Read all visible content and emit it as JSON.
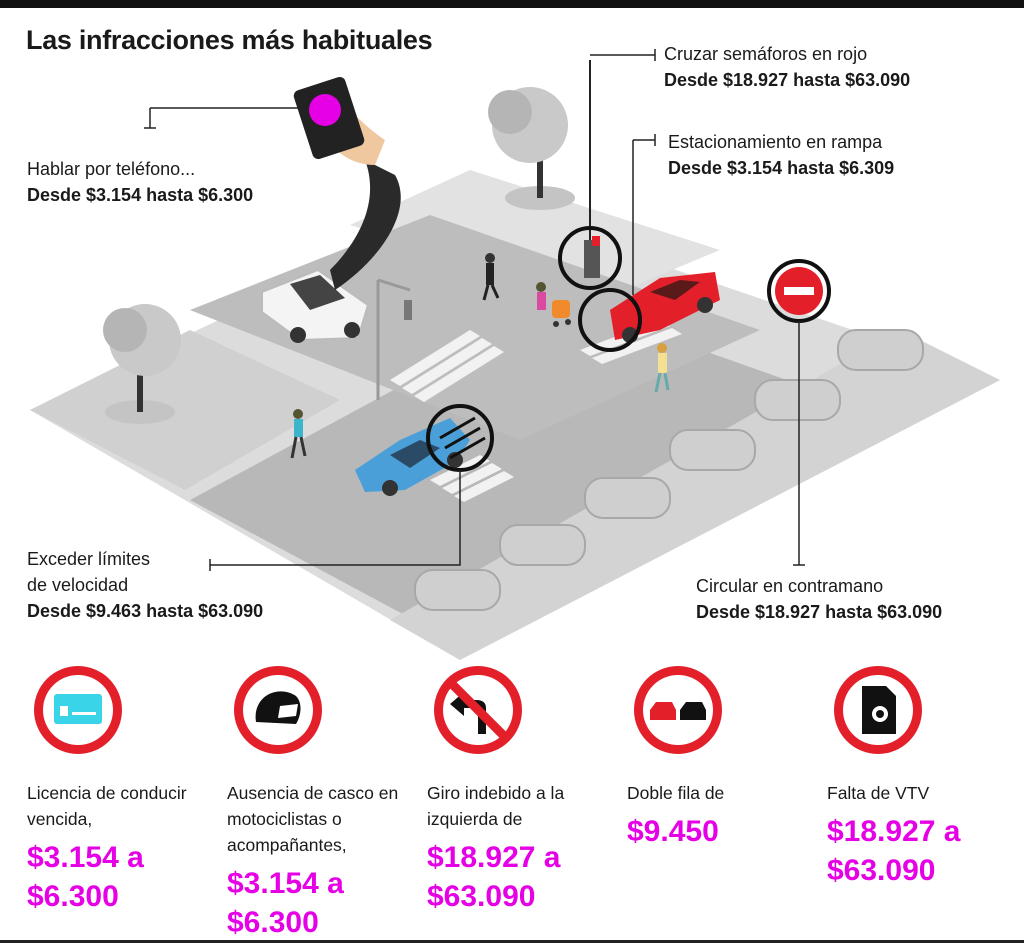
{
  "title": "Las infracciones más habituales",
  "callouts": {
    "phone": {
      "label": "Hablar por teléfono...",
      "range": "Desde $3.154 hasta $6.300"
    },
    "red_light": {
      "label": "Cruzar semáforos en rojo",
      "range": "Desde $18.927 hasta $63.090"
    },
    "ramp": {
      "label": "Estacionamiento en rampa",
      "range": "Desde $3.154 hasta $6.309"
    },
    "speed": {
      "label_line1": "Exceder límites",
      "label_line2": "de velocidad",
      "range": "Desde $9.463 hasta $63.090"
    },
    "wrong_way": {
      "label": "Circular en contramano",
      "range": "Desde $18.927 hasta $63.090"
    }
  },
  "fines": [
    {
      "icon": "license-card-icon",
      "text": "Licencia de conducir vencida,",
      "price": "$3.154 a $6.300"
    },
    {
      "icon": "helmet-icon",
      "text": "Ausencia de casco en motociclistas o acompañantes,",
      "price": "$3.154 a $6.300"
    },
    {
      "icon": "no-left-turn-icon",
      "text": "Giro indebido a la izquierda de",
      "price": "$18.927 a $63.090"
    },
    {
      "icon": "double-parking-icon",
      "text": "Doble fila de",
      "price": "$9.450"
    },
    {
      "icon": "vtv-document-icon",
      "text": "Falta de VTV",
      "price": "$18.927 a $63.090"
    }
  ],
  "colors": {
    "accent": "#e600e6",
    "sign_red": "#e3202a",
    "car_red": "#e3202a",
    "car_blue": "#4a9fd8",
    "road": "#b5b5b5",
    "sidewalk": "#d6d6d6"
  }
}
